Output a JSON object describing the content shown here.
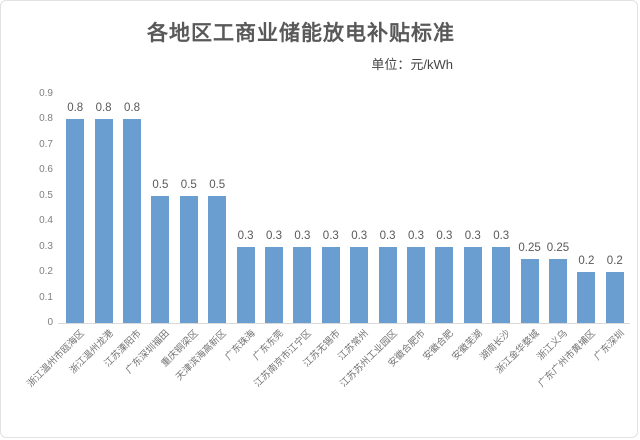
{
  "page": {
    "background_color": "#ffffff",
    "border_color": "#e2e2e2"
  },
  "header": {
    "title": "各地区工商业储能放电补贴标准",
    "unit_label": "单位：元/kWh"
  },
  "chart_data": {
    "type": "bar",
    "title": "各地区工商业储能放电补贴标准",
    "subtitle": "单位：元/kWh",
    "categories": [
      "浙江温州市瓯海区",
      "浙江温州龙港",
      "江苏溧阳市",
      "广东深圳福田",
      "重庆铜梁区",
      "天津滨海高新区",
      "广东珠海",
      "广东东莞",
      "江苏南京市江宁区",
      "江苏无锡市",
      "江苏常州",
      "江苏苏州工业园区",
      "安徽合肥市",
      "安徽合肥",
      "安徽芜湖",
      "湖南长沙",
      "浙江金华婺城",
      "浙江义乌",
      "广东广州市黄埔区",
      "广东深圳"
    ],
    "values": [
      0.8,
      0.8,
      0.8,
      0.5,
      0.5,
      0.5,
      0.3,
      0.3,
      0.3,
      0.3,
      0.3,
      0.3,
      0.3,
      0.3,
      0.3,
      0.3,
      0.25,
      0.25,
      0.2,
      0.2
    ],
    "value_labels": [
      "0.8",
      "0.8",
      "0.8",
      "0.5",
      "0.5",
      "0.5",
      "0.3",
      "0.3",
      "0.3",
      "0.3",
      "0.3",
      "0.3",
      "0.3",
      "0.3",
      "0.3",
      "0.3",
      "0.25",
      "0.25",
      "0.2",
      "0.2"
    ],
    "xlabel": "",
    "ylabel": "",
    "ylim": [
      0,
      0.9
    ],
    "yticks": [
      "0.9",
      "0.8",
      "0.7",
      "0.6",
      "0.5",
      "0.4",
      "0.3",
      "0.2",
      "0.1",
      "0"
    ],
    "grid": false,
    "legend": "none",
    "bar_color": "#6A9DD0"
  }
}
